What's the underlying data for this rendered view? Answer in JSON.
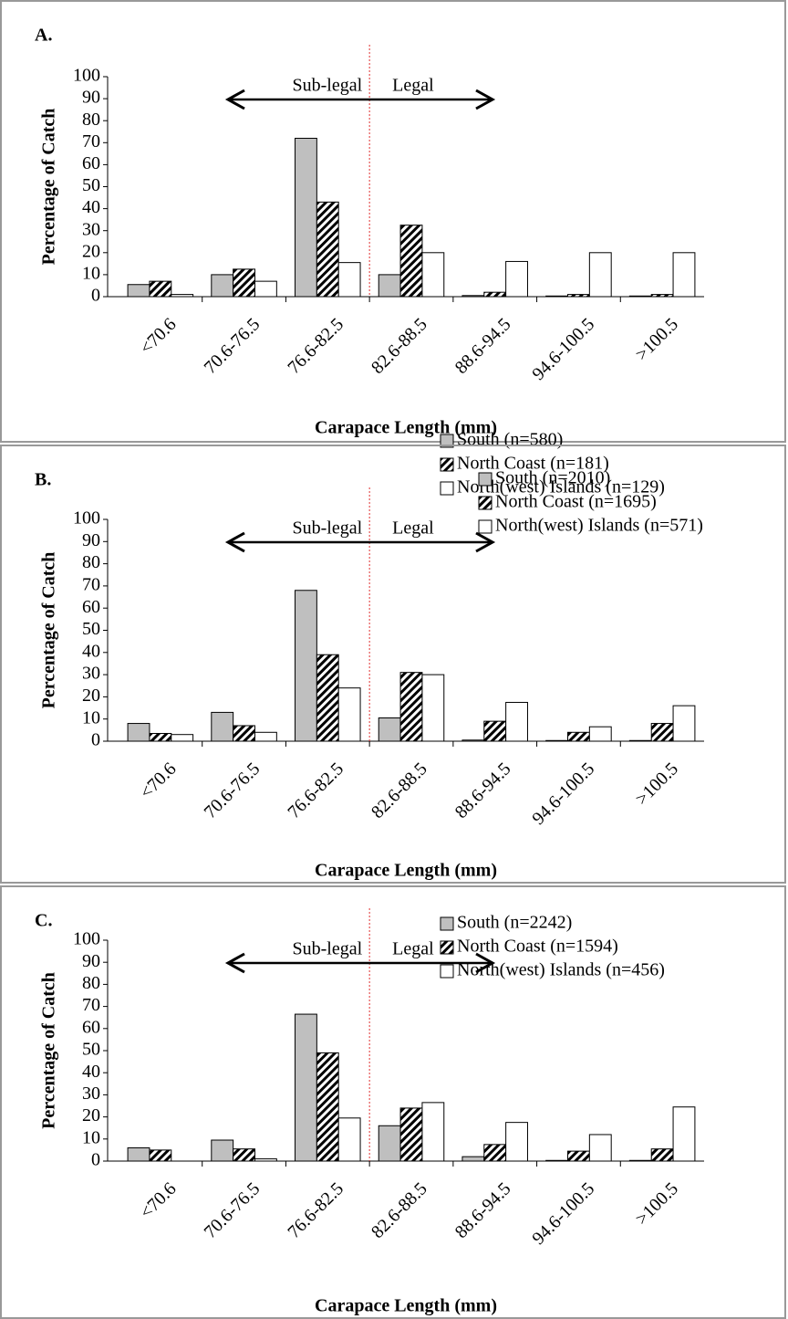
{
  "chart_data": [
    {
      "type": "bar",
      "panel_label": "A.",
      "y_label": "Percentage of Catch",
      "x_label": "Carapace Length (mm)",
      "annotations": [
        "Sub-legal",
        "Legal"
      ],
      "categories": [
        "<70.6",
        "70.6-76.5",
        "76.6-82.5",
        "82.6-88.5",
        "88.6-94.5",
        "94.6-100.5",
        ">100.5"
      ],
      "ylim": [
        0,
        100
      ],
      "yticks": [
        0,
        10,
        20,
        30,
        40,
        50,
        60,
        70,
        80,
        90,
        100
      ],
      "series": [
        {
          "name": "South (n=580)",
          "color": "#bfbfbf",
          "hatch": false,
          "values": [
            5.5,
            10,
            72,
            10,
            0.5,
            0.3,
            0.3
          ]
        },
        {
          "name": "North Coast (n=181)",
          "color": "#ffffff",
          "hatch": true,
          "values": [
            7,
            12.5,
            43,
            32.5,
            2,
            1,
            1
          ]
        },
        {
          "name": "North(west) Islands (n=129)",
          "color": "#ffffff",
          "hatch": false,
          "values": [
            1,
            7,
            15.5,
            20,
            16,
            20,
            20
          ]
        }
      ]
    },
    {
      "type": "bar",
      "panel_label": "B.",
      "y_label": "Percentage of Catch",
      "x_label": "Carapace Length (mm)",
      "annotations": [
        "Sub-legal",
        "Legal"
      ],
      "categories": [
        "<70.6",
        "70.6-76.5",
        "76.6-82.5",
        "82.6-88.5",
        "88.6-94.5",
        "94.6-100.5",
        ">100.5"
      ],
      "ylim": [
        0,
        100
      ],
      "yticks": [
        0,
        10,
        20,
        30,
        40,
        50,
        60,
        70,
        80,
        90,
        100
      ],
      "series": [
        {
          "name": "South (n=2010)",
          "color": "#bfbfbf",
          "hatch": false,
          "values": [
            8,
            13,
            68,
            10.5,
            0.5,
            0.3,
            0.3
          ]
        },
        {
          "name": "North Coast (n=1695)",
          "color": "#ffffff",
          "hatch": true,
          "values": [
            3.5,
            7,
            39,
            31,
            9,
            4,
            8
          ]
        },
        {
          "name": "North(west) Islands (n=571)",
          "color": "#ffffff",
          "hatch": false,
          "values": [
            3,
            4,
            24,
            30,
            17.5,
            6.5,
            16
          ]
        }
      ]
    },
    {
      "type": "bar",
      "panel_label": "C.",
      "y_label": "Percentage of Catch",
      "x_label": "Carapace Length (mm)",
      "annotations": [
        "Sub-legal",
        "Legal"
      ],
      "categories": [
        "<70.6",
        "70.6-76.5",
        "76.6-82.5",
        "82.6-88.5",
        "88.6-94.5",
        "94.6-100.5",
        ">100.5"
      ],
      "ylim": [
        0,
        100
      ],
      "yticks": [
        0,
        10,
        20,
        30,
        40,
        50,
        60,
        70,
        80,
        90,
        100
      ],
      "series": [
        {
          "name": "South (n=2242)",
          "color": "#bfbfbf",
          "hatch": false,
          "values": [
            6,
            9.5,
            66.5,
            16,
            2,
            0.3,
            0.3
          ]
        },
        {
          "name": "North Coast (n=1594)",
          "color": "#ffffff",
          "hatch": true,
          "values": [
            5,
            5.5,
            49,
            24,
            7.5,
            4.5,
            5.5
          ]
        },
        {
          "name": "North(west) Islands (n=456)",
          "color": "#ffffff",
          "hatch": false,
          "values": [
            0,
            1,
            19.5,
            26.5,
            17.5,
            12,
            24.5
          ]
        }
      ]
    }
  ]
}
